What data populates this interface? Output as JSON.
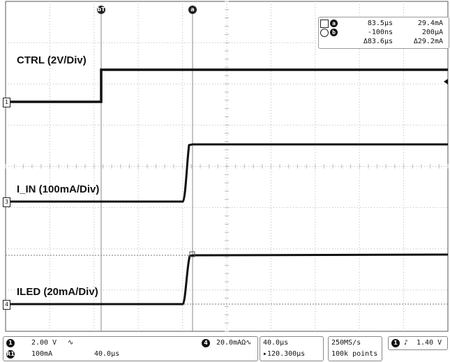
{
  "traces": {
    "ctrl_label": "CTRL (2V/Div)",
    "iin_label": "I_IN (100mA/Div)",
    "iled_label": "ILED (20mA/Div)"
  },
  "channel_markers": {
    "ch1": "1",
    "ch3": "3",
    "ch4": "4"
  },
  "cursors": {
    "a_marker": "a",
    "b_marker": "bT",
    "a_time": "83.5µs",
    "a_value": "29.4mA",
    "b_time": "-100ns",
    "b_value": "200µA",
    "delta_time": "Δ83.6µs",
    "delta_value": "Δ29.2mA",
    "a_badge": "a",
    "b_badge": "b"
  },
  "status_bar": {
    "ch1_badge": "1",
    "ch1_scale": "2.00 V",
    "ch1_coupling": "∿",
    "ch4_badge": "4",
    "ch4_scale": "20.0mAΩ∿",
    "ref_badge": "R1",
    "ref_scale": "100mA",
    "ref_time": "40.0µs",
    "timebase": "40.0µs",
    "trigger_delay": "▸120.300µs",
    "sample_rate": "250MS/s",
    "record_length": "100k points",
    "trig_badge": "1",
    "trig_slope": "♪",
    "trig_level": "1.40 V"
  },
  "colors": {
    "background": "#ffffff",
    "grid": "#b8b8b8",
    "trace": "#111111"
  }
}
